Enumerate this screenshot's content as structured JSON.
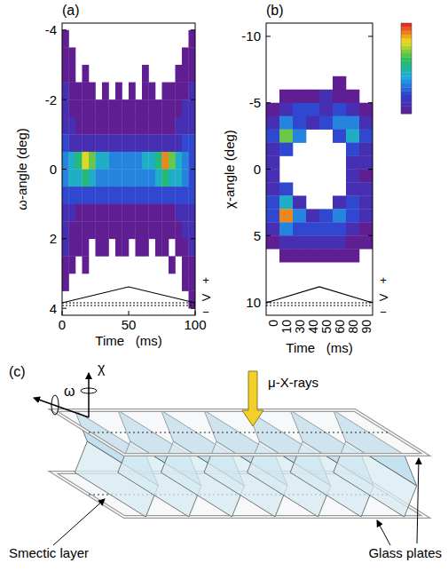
{
  "chart_data": [
    {
      "type": "heatmap",
      "panel": "(a)",
      "y_label": "ω-angle (deg)",
      "x_label": "Time   (ms)",
      "xlim": [
        0,
        100
      ],
      "ylim": [
        -4.2,
        4.2
      ],
      "xticks": [
        0,
        50,
        100
      ],
      "yticks": [
        -4,
        -2,
        0,
        2,
        4
      ],
      "xbins": [
        0,
        5,
        10,
        15,
        20,
        25,
        30,
        35,
        40,
        45,
        50,
        55,
        60,
        65,
        70,
        75,
        80,
        85,
        90,
        95,
        100
      ],
      "ybins": [
        -4,
        -3.5,
        -3,
        -2.5,
        -2,
        -1.5,
        -1,
        -0.5,
        0,
        0.5,
        1,
        1.5,
        2,
        2.5,
        3,
        3.5,
        4
      ],
      "zlim": [
        1,
        10
      ],
      "cells": [
        [
          1,
          0,
          0,
          0,
          0,
          0,
          0,
          0,
          0,
          0,
          0,
          0,
          0,
          0,
          0,
          0,
          0,
          0,
          0,
          1
        ],
        [
          1,
          1,
          0,
          0,
          0,
          0,
          0,
          0,
          0,
          0,
          0,
          0,
          0,
          0,
          0,
          0,
          0,
          0,
          1,
          1
        ],
        [
          1,
          1,
          0,
          1,
          0,
          0,
          0,
          0,
          0,
          0,
          0,
          0,
          1,
          0,
          0,
          0,
          0,
          1,
          1,
          1
        ],
        [
          2,
          1,
          1,
          1,
          1,
          0,
          1,
          0,
          1,
          0,
          1,
          0,
          1,
          1,
          0,
          1,
          1,
          1,
          1,
          2
        ],
        [
          2,
          1,
          1,
          1,
          1,
          1,
          1,
          1,
          1,
          1,
          1,
          1,
          1,
          1,
          1,
          1,
          1,
          1,
          2,
          2
        ],
        [
          2,
          2,
          1,
          1,
          1,
          1,
          1,
          1,
          1,
          1,
          1,
          1,
          1,
          1,
          1,
          1,
          1,
          2,
          2,
          2
        ],
        [
          3,
          2,
          2,
          2,
          2,
          2,
          2,
          2,
          2,
          2,
          2,
          2,
          2,
          2,
          2,
          2,
          2,
          2,
          3,
          3
        ],
        [
          4,
          5,
          6,
          8,
          7,
          5,
          5,
          4,
          4,
          4,
          4,
          4,
          5,
          5,
          6,
          9,
          7,
          5,
          4,
          3
        ],
        [
          4,
          5,
          5,
          6,
          5,
          4,
          4,
          4,
          4,
          4,
          4,
          4,
          4,
          4,
          5,
          6,
          5,
          5,
          4,
          3
        ],
        [
          3,
          3,
          3,
          3,
          3,
          3,
          3,
          3,
          3,
          3,
          3,
          3,
          3,
          3,
          3,
          3,
          3,
          3,
          3,
          3
        ],
        [
          2,
          2,
          1,
          1,
          1,
          1,
          1,
          1,
          1,
          1,
          1,
          1,
          1,
          1,
          1,
          1,
          1,
          2,
          2,
          2
        ],
        [
          2,
          1,
          1,
          1,
          1,
          1,
          1,
          1,
          1,
          1,
          1,
          1,
          1,
          1,
          1,
          1,
          1,
          1,
          2,
          2
        ],
        [
          2,
          1,
          1,
          1,
          0,
          1,
          1,
          0,
          1,
          1,
          0,
          1,
          1,
          0,
          1,
          1,
          0,
          1,
          1,
          2
        ],
        [
          1,
          1,
          0,
          1,
          0,
          0,
          0,
          0,
          0,
          0,
          0,
          0,
          0,
          0,
          0,
          0,
          1,
          0,
          1,
          1
        ],
        [
          1,
          0,
          0,
          0,
          0,
          0,
          0,
          0,
          0,
          0,
          0,
          0,
          0,
          0,
          0,
          0,
          0,
          0,
          1,
          1
        ],
        [
          0,
          0,
          0,
          0,
          0,
          0,
          0,
          0,
          0,
          0,
          0,
          0,
          0,
          0,
          0,
          0,
          0,
          0,
          0,
          1
        ]
      ],
      "waveform": {
        "plus": "+",
        "label": "V",
        "minus": "−"
      }
    },
    {
      "type": "heatmap",
      "panel": "(b)",
      "y_label": "χ-angle (deg)",
      "x_label": "Time   (ms)",
      "categories": [
        "0",
        "10",
        "30",
        "40",
        "50",
        "60",
        "80",
        "90"
      ],
      "ylim": [
        -11,
        11
      ],
      "yticks": [
        -10,
        -5,
        0,
        5,
        10
      ],
      "ybins": [
        -8,
        -7,
        -6,
        -5,
        -4,
        -3,
        -2,
        -1,
        0,
        1,
        2,
        3,
        4,
        5,
        6,
        7,
        8
      ],
      "zlim": [
        1,
        10
      ],
      "cells": [
        [
          0,
          0,
          0,
          0,
          0,
          0,
          0,
          0
        ],
        [
          0,
          0,
          0,
          0,
          0,
          1,
          0,
          0
        ],
        [
          0,
          1,
          1,
          1,
          2,
          1,
          1,
          0
        ],
        [
          1,
          2,
          3,
          3,
          2,
          3,
          2,
          1
        ],
        [
          2,
          4,
          3,
          2,
          3,
          4,
          4,
          2
        ],
        [
          3,
          7,
          4,
          0,
          0,
          3,
          5,
          3
        ],
        [
          2,
          3,
          0,
          0,
          0,
          0,
          3,
          2
        ],
        [
          2,
          0,
          0,
          0,
          0,
          0,
          2,
          2
        ],
        [
          2,
          0,
          0,
          0,
          0,
          0,
          2,
          1
        ],
        [
          2,
          3,
          0,
          0,
          0,
          0,
          2,
          2
        ],
        [
          3,
          5,
          2,
          0,
          0,
          2,
          3,
          2
        ],
        [
          3,
          9,
          4,
          2,
          3,
          4,
          3,
          2
        ],
        [
          2,
          4,
          3,
          3,
          3,
          3,
          2,
          1
        ],
        [
          1,
          2,
          2,
          2,
          2,
          2,
          1,
          1
        ],
        [
          0,
          1,
          1,
          1,
          1,
          1,
          1,
          0
        ],
        [
          0,
          0,
          0,
          0,
          0,
          0,
          0,
          0
        ]
      ],
      "waveform": {
        "plus": "+",
        "label": "V",
        "minus": "−"
      }
    }
  ],
  "diagram": {
    "panel": "(c)",
    "labels": {
      "chi": "χ",
      "omega": "ω",
      "xrays": "μ-X-rays",
      "layer": "Smectic layer",
      "plates": "Glass plates"
    }
  }
}
